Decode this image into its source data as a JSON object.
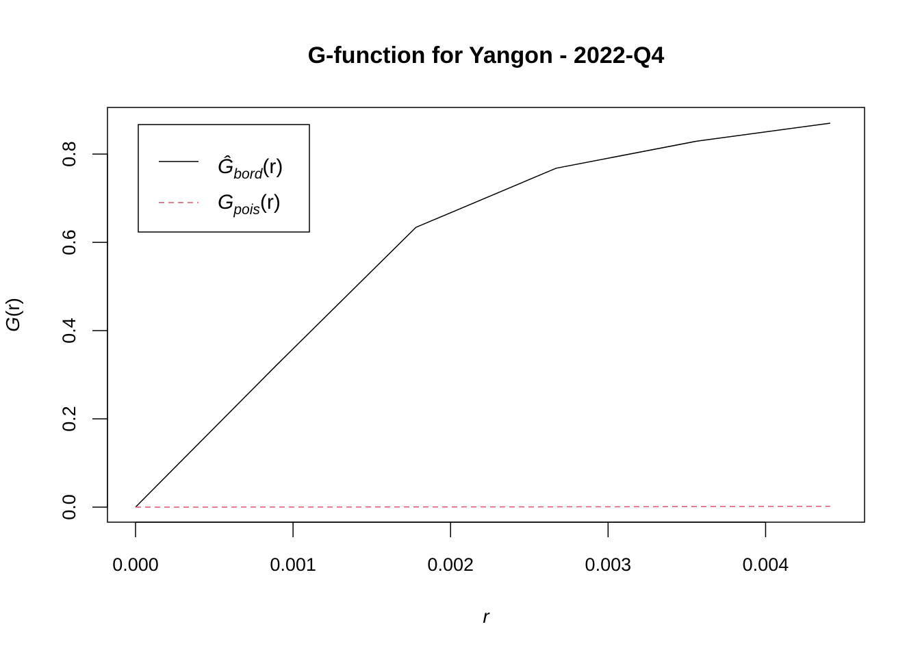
{
  "chart_data": {
    "type": "line",
    "title": "G-function for Yangon - 2022-Q4",
    "xlabel": "r",
    "ylabel": {
      "main": "G",
      "arg": "(r)"
    },
    "xlim": [
      0,
      0.00445
    ],
    "ylim": [
      0,
      0.87
    ],
    "x_ticks": [
      "0.000",
      "0.001",
      "0.002",
      "0.003",
      "0.004"
    ],
    "x_tick_values": [
      0,
      0.001,
      0.002,
      0.003,
      0.004
    ],
    "y_ticks": [
      "0.0",
      "0.2",
      "0.4",
      "0.6",
      "0.8"
    ],
    "y_tick_values": [
      0,
      0.2,
      0.4,
      0.6,
      0.8
    ],
    "grid": false,
    "legend_position": "top-left",
    "series": [
      {
        "legend": {
          "main": "Ĝ",
          "sub": "bord",
          "arg": "(r)"
        },
        "color": "#000000",
        "dash": "solid",
        "x": [
          0,
          0.00089,
          0.00178,
          0.00267,
          0.00356,
          0.00441
        ],
        "y": [
          0,
          0.32,
          0.634,
          0.768,
          0.829,
          0.87
        ]
      },
      {
        "legend": {
          "main": "G",
          "sub": "pois",
          "arg": "(r)"
        },
        "color": "#DF536B",
        "dash": "dashed",
        "x": [
          0,
          0.001,
          0.002,
          0.003,
          0.004,
          0.00441
        ],
        "y": [
          0,
          0.0001,
          0.0004,
          0.0008,
          0.0015,
          0.0018
        ]
      }
    ]
  }
}
